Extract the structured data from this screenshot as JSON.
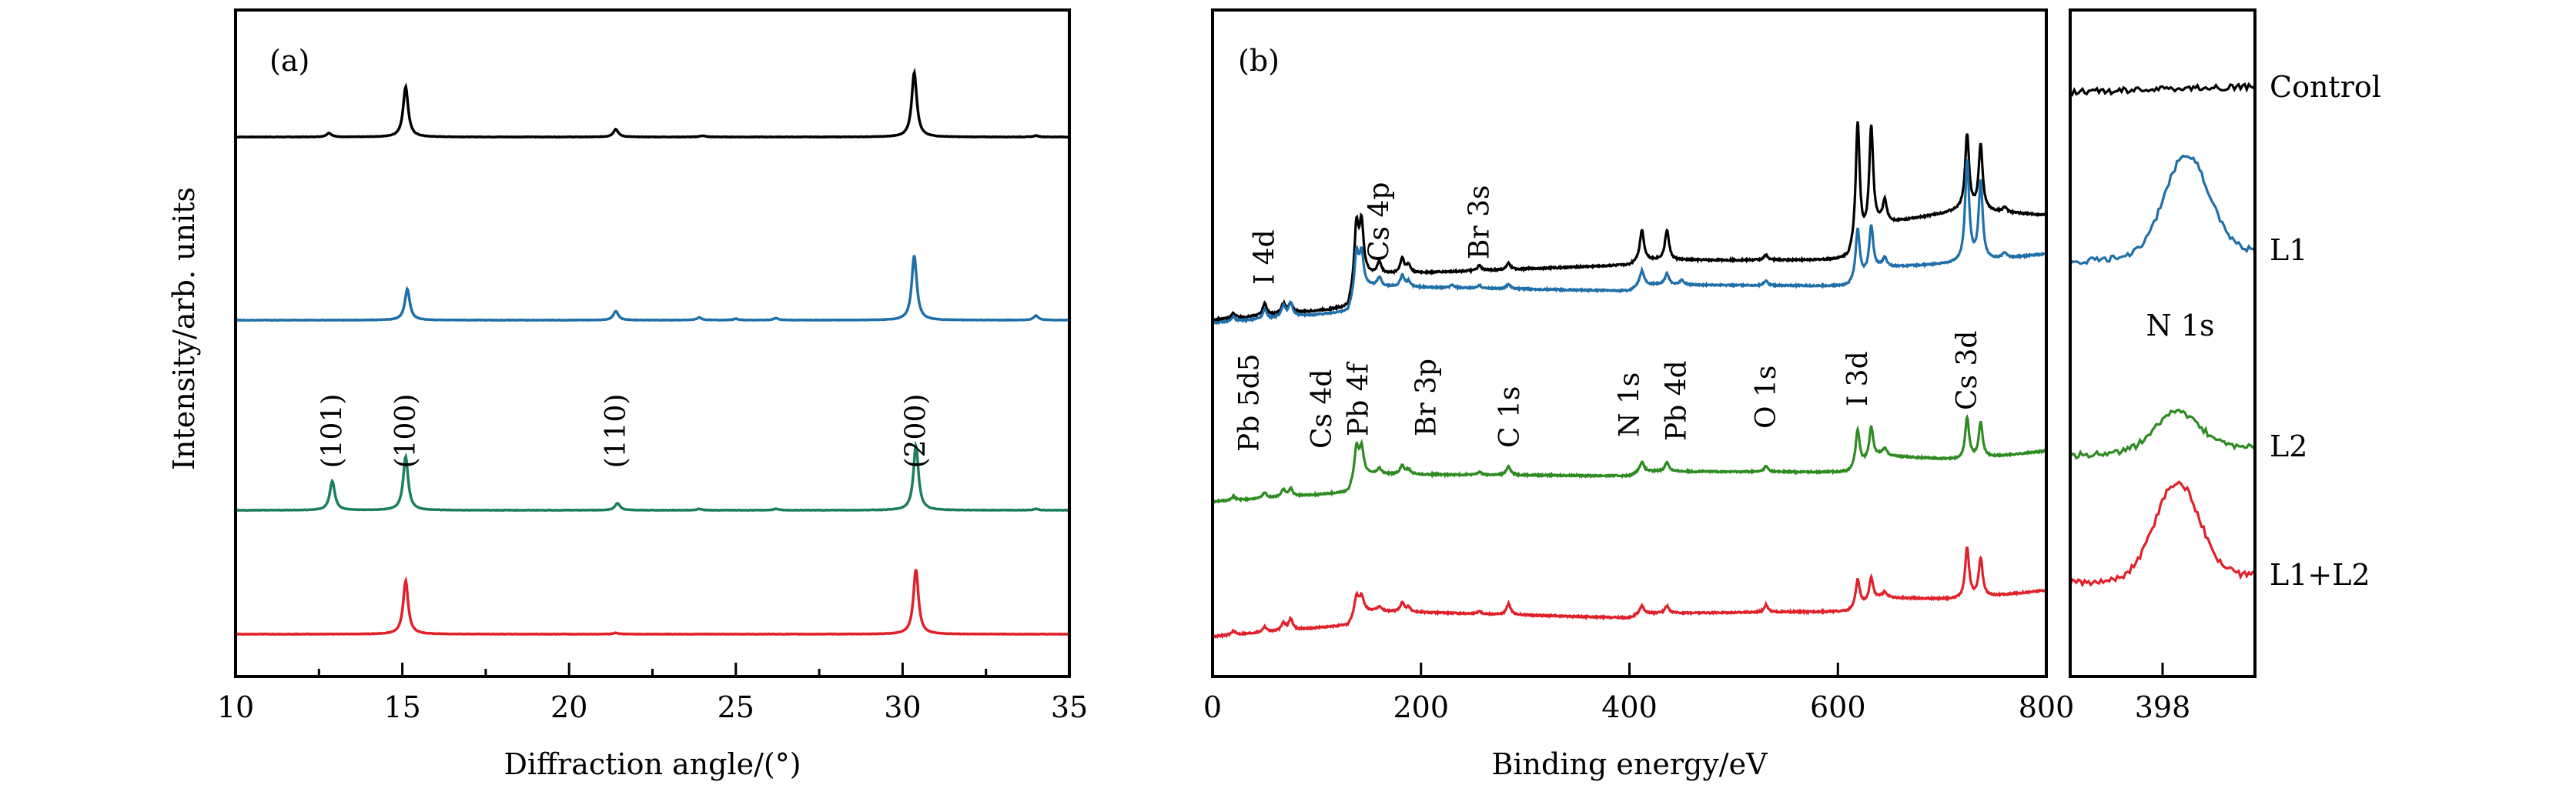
{
  "chart_data": [
    {
      "id": "a",
      "type": "line",
      "panel_label": "(a)",
      "title": "",
      "xlabel": "Diffraction angle/(°)",
      "ylabel": "Intensity/arb. units",
      "xlim": [
        10,
        35
      ],
      "xticks": [
        10,
        15,
        20,
        25,
        30,
        35
      ],
      "minor_xticks": [
        12.5,
        17.5,
        22.5,
        27.5,
        32.5
      ],
      "grid": false,
      "annotations": [
        {
          "text": "(101)",
          "x": 12.9
        },
        {
          "text": "(100)",
          "x": 15.1
        },
        {
          "text": "(110)",
          "x": 21.4
        },
        {
          "text": "(200)",
          "x": 30.4
        }
      ],
      "series": [
        {
          "name": "Control",
          "color": "#000000",
          "offset": 3,
          "peaks": [
            [
              12.8,
              0.06
            ],
            [
              15.1,
              0.78
            ],
            [
              21.4,
              0.12
            ],
            [
              24.0,
              0.02
            ],
            [
              30.35,
              1.0
            ],
            [
              34.0,
              0.02
            ]
          ]
        },
        {
          "name": "L1",
          "color": "#1f6fa8",
          "offset": 2,
          "peaks": [
            [
              15.15,
              0.48
            ],
            [
              21.4,
              0.14
            ],
            [
              23.9,
              0.04
            ],
            [
              25.0,
              0.02
            ],
            [
              26.2,
              0.03
            ],
            [
              30.35,
              1.0
            ],
            [
              34.0,
              0.07
            ]
          ]
        },
        {
          "name": "L2",
          "color": "#1b7f5a",
          "offset": 1,
          "peaks": [
            [
              12.9,
              0.45
            ],
            [
              15.1,
              0.83
            ],
            [
              21.45,
              0.11
            ],
            [
              23.9,
              0.02
            ],
            [
              26.2,
              0.02
            ],
            [
              30.4,
              1.0
            ],
            [
              34.0,
              0.02
            ]
          ]
        },
        {
          "name": "L1+L2",
          "color": "#e0202a",
          "offset": 0,
          "peaks": [
            [
              15.1,
              0.83
            ],
            [
              21.4,
              0.02
            ],
            [
              30.4,
              1.0
            ]
          ]
        }
      ]
    },
    {
      "id": "b",
      "type": "line",
      "panel_label": "(b)",
      "xlabel": "Binding energy/eV",
      "xlim": [
        0,
        800
      ],
      "xticks": [
        0,
        200,
        400,
        600,
        800
      ],
      "grid": false,
      "annotations_upper": [
        {
          "text": "I 4d",
          "x": 50
        },
        {
          "text": "Cs 4p",
          "x": 160
        },
        {
          "text": "Br 3s",
          "x": 256
        }
      ],
      "annotations_lower": [
        {
          "text": "Pb 5d5",
          "x": 35
        },
        {
          "text": "Cs 4d",
          "x": 105
        },
        {
          "text": "Pb 4f",
          "x": 140
        },
        {
          "text": "Br 3p",
          "x": 205
        },
        {
          "text": "C 1s",
          "x": 285
        },
        {
          "text": "N 1s",
          "x": 400
        },
        {
          "text": "Pb 4d",
          "x": 445
        },
        {
          "text": "O 1s",
          "x": 531
        },
        {
          "text": "I 3d",
          "x": 619
        },
        {
          "text": "Cs 3d",
          "x": 724
        }
      ],
      "series": [
        {
          "name": "Control",
          "color": "#000000",
          "baseline": [
            [
              0,
              0.0
            ],
            [
              130,
              0.12
            ],
            [
              140,
              0.45
            ],
            [
              400,
              0.55
            ],
            [
              410,
              0.6
            ],
            [
              610,
              0.6
            ],
            [
              640,
              0.95
            ],
            [
              720,
              1.1
            ],
            [
              800,
              1.05
            ]
          ],
          "peaks": [
            [
              20,
              0.05
            ],
            [
              50,
              0.12
            ],
            [
              68,
              0.1
            ],
            [
              75,
              0.1
            ],
            [
              138,
              0.55
            ],
            [
              143,
              0.5
            ],
            [
              160,
              0.12
            ],
            [
              182,
              0.15
            ],
            [
              188,
              0.08
            ],
            [
              256,
              0.05
            ],
            [
              284,
              0.06
            ],
            [
              412,
              0.3
            ],
            [
              436,
              0.3
            ],
            [
              531,
              0.05
            ],
            [
              619,
              1.25
            ],
            [
              632,
              1.05
            ],
            [
              645,
              0.22
            ],
            [
              724,
              0.75
            ],
            [
              737,
              0.65
            ],
            [
              760,
              0.05
            ]
          ]
        },
        {
          "name": "L1",
          "color": "#1f6fa8",
          "baseline": [
            [
              0,
              0.0
            ],
            [
              130,
              0.12
            ],
            [
              140,
              0.4
            ],
            [
              400,
              0.35
            ],
            [
              410,
              0.42
            ],
            [
              610,
              0.4
            ],
            [
              640,
              0.6
            ],
            [
              720,
              0.65
            ],
            [
              800,
              0.75
            ]
          ],
          "peaks": [
            [
              20,
              0.05
            ],
            [
              50,
              0.1
            ],
            [
              68,
              0.12
            ],
            [
              75,
              0.15
            ],
            [
              138,
              0.4
            ],
            [
              143,
              0.35
            ],
            [
              160,
              0.1
            ],
            [
              182,
              0.12
            ],
            [
              188,
              0.06
            ],
            [
              230,
              0.03
            ],
            [
              256,
              0.03
            ],
            [
              284,
              0.05
            ],
            [
              412,
              0.15
            ],
            [
              436,
              0.12
            ],
            [
              450,
              0.05
            ],
            [
              531,
              0.05
            ],
            [
              619,
              0.55
            ],
            [
              632,
              0.5
            ],
            [
              645,
              0.1
            ],
            [
              724,
              1.1
            ],
            [
              737,
              0.85
            ],
            [
              760,
              0.06
            ]
          ]
        },
        {
          "name": "L2",
          "color": "#2e8b22",
          "baseline": [
            [
              0,
              0.0
            ],
            [
              130,
              0.1
            ],
            [
              140,
              0.3
            ],
            [
              400,
              0.28
            ],
            [
              410,
              0.33
            ],
            [
              610,
              0.32
            ],
            [
              640,
              0.5
            ],
            [
              720,
              0.45
            ],
            [
              800,
              0.55
            ]
          ],
          "peaks": [
            [
              20,
              0.04
            ],
            [
              50,
              0.06
            ],
            [
              68,
              0.08
            ],
            [
              75,
              0.08
            ],
            [
              138,
              0.32
            ],
            [
              143,
              0.28
            ],
            [
              160,
              0.06
            ],
            [
              182,
              0.1
            ],
            [
              188,
              0.05
            ],
            [
              256,
              0.03
            ],
            [
              284,
              0.1
            ],
            [
              412,
              0.1
            ],
            [
              436,
              0.1
            ],
            [
              531,
              0.06
            ],
            [
              619,
              0.4
            ],
            [
              632,
              0.35
            ],
            [
              645,
              0.08
            ],
            [
              724,
              0.45
            ],
            [
              737,
              0.38
            ]
          ]
        },
        {
          "name": "L1+L2",
          "color": "#e0202a",
          "baseline": [
            [
              0,
              0.0
            ],
            [
              130,
              0.12
            ],
            [
              140,
              0.28
            ],
            [
              400,
              0.2
            ],
            [
              410,
              0.25
            ],
            [
              610,
              0.27
            ],
            [
              640,
              0.42
            ],
            [
              720,
              0.4
            ],
            [
              800,
              0.5
            ]
          ],
          "peaks": [
            [
              20,
              0.04
            ],
            [
              50,
              0.06
            ],
            [
              68,
              0.08
            ],
            [
              75,
              0.12
            ],
            [
              138,
              0.18
            ],
            [
              143,
              0.15
            ],
            [
              160,
              0.05
            ],
            [
              182,
              0.1
            ],
            [
              188,
              0.05
            ],
            [
              256,
              0.03
            ],
            [
              284,
              0.12
            ],
            [
              412,
              0.08
            ],
            [
              436,
              0.08
            ],
            [
              531,
              0.08
            ],
            [
              619,
              0.3
            ],
            [
              632,
              0.25
            ],
            [
              645,
              0.06
            ],
            [
              724,
              0.55
            ],
            [
              737,
              0.42
            ]
          ]
        }
      ]
    },
    {
      "id": "c",
      "type": "line",
      "panel_label": "N 1s",
      "xlim": [
        393,
        403
      ],
      "xticks": [
        398
      ],
      "grid": false,
      "series": [
        {
          "name": "Control",
          "color": "#000000",
          "peak_center": 398,
          "peak_height": 0.0,
          "noise": 0.03
        },
        {
          "name": "L1",
          "color": "#1f6fa8",
          "peak_center": 399.3,
          "peak_height": 1.0,
          "noise": 0.03
        },
        {
          "name": "L2",
          "color": "#2e8b22",
          "peak_center": 398.8,
          "peak_height": 0.38,
          "noise": 0.03
        },
        {
          "name": "L1+L2",
          "color": "#e0202a",
          "peak_center": 398.8,
          "peak_height": 0.95,
          "noise": 0.03
        }
      ]
    }
  ],
  "legend": [
    "Control",
    "L1",
    "L2",
    "L1+L2"
  ]
}
